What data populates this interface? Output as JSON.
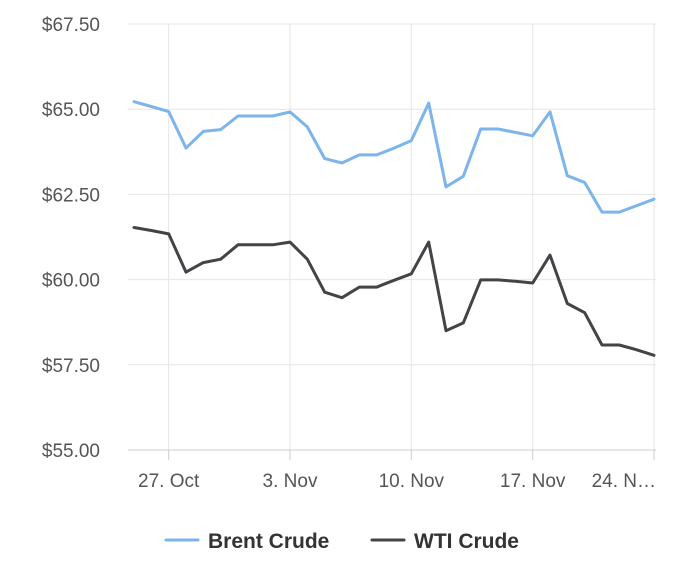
{
  "chart_data": {
    "type": "line",
    "x": [
      "25 Oct",
      "26 Oct",
      "27 Oct",
      "28 Oct",
      "29 Oct",
      "30 Oct",
      "31 Oct",
      "1 Nov",
      "2 Nov",
      "3 Nov",
      "4 Nov",
      "5 Nov",
      "6 Nov",
      "7 Nov",
      "8 Nov",
      "9 Nov",
      "10 Nov",
      "11 Nov",
      "12 Nov",
      "13 Nov",
      "14 Nov",
      "15 Nov",
      "16 Nov",
      "17 Nov",
      "18 Nov",
      "19 Nov",
      "20 Nov",
      "21 Nov",
      "22 Nov",
      "23 Nov",
      "24 Nov"
    ],
    "x_ticks": [
      {
        "at": "27 Oct",
        "label": "27. Oct"
      },
      {
        "at": "3 Nov",
        "label": "3. Nov"
      },
      {
        "at": "10 Nov",
        "label": "10. Nov"
      },
      {
        "at": "17 Nov",
        "label": "17. Nov"
      },
      {
        "at": "24 Nov",
        "label": "24. N…"
      }
    ],
    "ylim": [
      55,
      67.5
    ],
    "y_ticks": [
      {
        "value": 67.5,
        "label": "$67.50"
      },
      {
        "value": 65,
        "label": "$65.00"
      },
      {
        "value": 62.5,
        "label": "$62.50"
      },
      {
        "value": 60,
        "label": "$60.00"
      },
      {
        "value": 57.5,
        "label": "$57.50"
      },
      {
        "value": 55,
        "label": "$55.00"
      }
    ],
    "grid": true,
    "legend_position": "bottom-center",
    "series": [
      {
        "name": "Brent Crude",
        "color": "#7cb5ec",
        "values": [
          65.22,
          65.08,
          64.93,
          63.86,
          64.35,
          64.4,
          64.8,
          64.8,
          64.8,
          64.92,
          64.48,
          63.55,
          63.42,
          63.66,
          63.66,
          63.86,
          64.08,
          65.18,
          62.72,
          63.03,
          64.42,
          64.42,
          64.32,
          64.22,
          64.92,
          63.05,
          62.85,
          61.98,
          61.98,
          62.17,
          62.36
        ]
      },
      {
        "name": "WTI Crude",
        "color": "#434348",
        "values": [
          61.53,
          61.44,
          61.34,
          60.22,
          60.5,
          60.6,
          61.02,
          61.02,
          61.02,
          61.1,
          60.6,
          59.63,
          59.47,
          59.78,
          59.78,
          59.98,
          60.17,
          61.1,
          58.5,
          58.73,
          59.99,
          59.99,
          59.95,
          59.9,
          60.72,
          59.3,
          59.03,
          58.08,
          58.08,
          57.94,
          57.78
        ]
      }
    ]
  }
}
